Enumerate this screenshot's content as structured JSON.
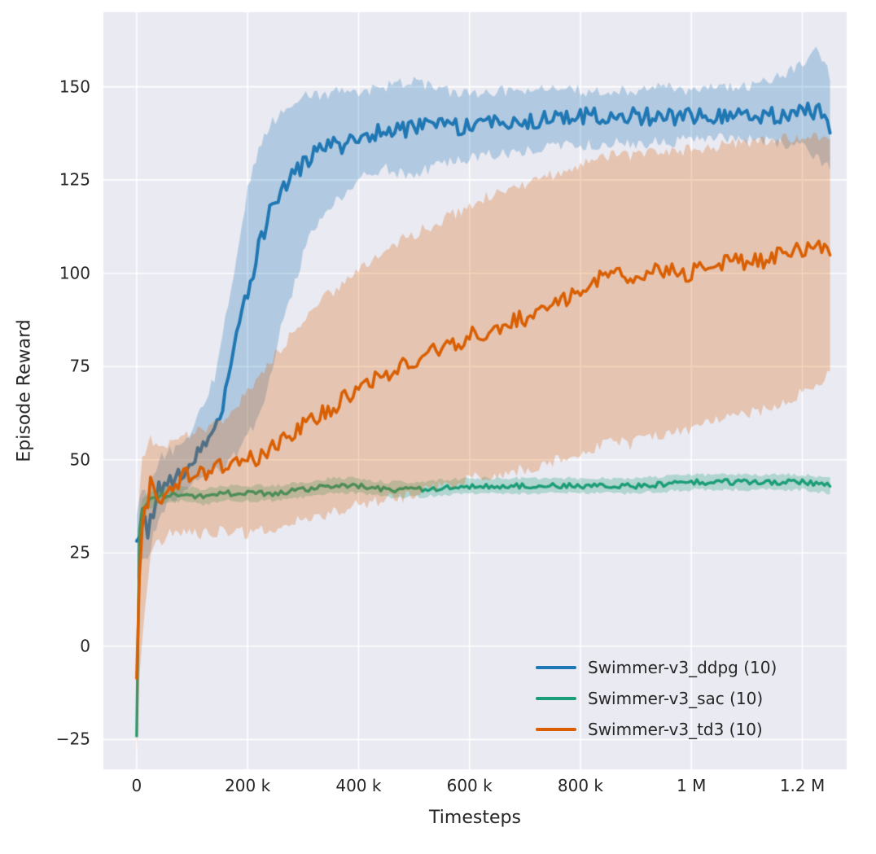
{
  "figure": {
    "background": "#ffffff",
    "plot_background": "#eaeaf2",
    "grid_color": "#ffffff",
    "text_color": "#262626"
  },
  "chart_data": {
    "type": "line",
    "title": "",
    "xlabel": "Timesteps",
    "ylabel": "Episode Reward",
    "grid": true,
    "legend_position": "lower right",
    "xlim": [
      -60000,
      1280000
    ],
    "ylim": [
      -33,
      170
    ],
    "xticks": {
      "values": [
        0,
        200000,
        400000,
        600000,
        800000,
        1000000,
        1200000
      ],
      "labels": [
        "0",
        "200 k",
        "400 k",
        "600 k",
        "800 k",
        "1 M",
        "1.2 M"
      ]
    },
    "yticks": {
      "values": [
        -25,
        0,
        25,
        50,
        75,
        100,
        125,
        150
      ],
      "labels": [
        "−25",
        "0",
        "25",
        "50",
        "75",
        "100",
        "125",
        "150"
      ]
    },
    "series": [
      {
        "name": "Swimmer-v3_ddpg (10)",
        "color": "#1f77b4",
        "x": [
          0,
          10000,
          20000,
          40000,
          60000,
          80000,
          100000,
          120000,
          140000,
          160000,
          180000,
          200000,
          220000,
          240000,
          260000,
          280000,
          300000,
          320000,
          340000,
          360000,
          380000,
          400000,
          450000,
          500000,
          550000,
          600000,
          650000,
          700000,
          750000,
          800000,
          850000,
          900000,
          950000,
          1000000,
          1050000,
          1100000,
          1150000,
          1200000,
          1230000,
          1250000
        ],
        "mean": [
          27,
          34,
          31,
          42,
          45,
          46,
          50,
          54,
          58,
          68,
          82,
          95,
          107,
          116,
          121,
          126,
          129,
          132,
          134,
          135,
          134,
          137,
          138,
          139,
          140,
          139,
          140,
          141,
          141,
          142,
          142,
          142,
          142,
          142,
          142,
          143,
          142,
          144,
          143,
          138
        ],
        "lo": [
          18,
          25,
          24,
          35,
          38,
          40,
          43,
          45,
          47,
          49,
          52,
          56,
          62,
          72,
          85,
          95,
          105,
          112,
          117,
          120,
          122,
          126,
          128,
          126,
          130,
          131,
          132,
          133,
          134,
          134,
          135,
          135,
          135,
          136,
          136,
          136,
          135,
          134,
          130,
          128
        ],
        "hi": [
          36,
          43,
          40,
          50,
          52,
          53,
          58,
          64,
          72,
          88,
          105,
          122,
          133,
          140,
          143,
          146,
          147,
          148,
          148,
          149,
          148,
          149,
          150,
          152,
          149,
          148,
          149,
          149,
          149,
          149,
          149,
          149,
          150,
          149,
          150,
          150,
          152,
          156,
          160,
          152
        ]
      },
      {
        "name": "Swimmer-v3_sac (10)",
        "color": "#1b9e77",
        "x": [
          0,
          3000,
          8000,
          20000,
          40000,
          80000,
          120000,
          160000,
          200000,
          250000,
          300000,
          350000,
          400000,
          450000,
          500000,
          600000,
          700000,
          800000,
          900000,
          1000000,
          1100000,
          1200000,
          1250000
        ],
        "mean": [
          -24,
          28,
          36,
          39,
          40,
          41,
          40,
          41,
          41,
          41,
          42,
          43,
          43,
          42,
          42,
          43,
          43,
          43,
          43,
          44,
          44,
          44,
          43
        ],
        "lo": [
          -26,
          24,
          33,
          37,
          38,
          39,
          38,
          39,
          39,
          39,
          40,
          41,
          41,
          40,
          40,
          41,
          41,
          41,
          41,
          42,
          42,
          42,
          41
        ],
        "hi": [
          -20,
          32,
          39,
          41,
          42,
          43,
          42,
          43,
          43,
          43,
          44,
          45,
          45,
          44,
          44,
          45,
          45,
          45,
          45,
          46,
          46,
          46,
          45
        ]
      },
      {
        "name": "Swimmer-v3_td3 (10)",
        "color": "#d95f02",
        "x": [
          0,
          3000,
          8000,
          15000,
          25000,
          40000,
          60000,
          80000,
          100000,
          120000,
          150000,
          180000,
          200000,
          220000,
          250000,
          280000,
          300000,
          330000,
          360000,
          400000,
          440000,
          480000,
          520000,
          560000,
          600000,
          640000,
          680000,
          720000,
          760000,
          800000,
          840000,
          870000,
          890000,
          920000,
          950000,
          1000000,
          1040000,
          1080000,
          1120000,
          1160000,
          1200000,
          1230000,
          1250000
        ],
        "mean": [
          -8,
          15,
          28,
          36,
          43,
          40,
          43,
          45,
          46,
          46,
          48,
          49,
          50,
          51,
          54,
          57,
          59,
          62,
          65,
          69,
          72,
          75,
          78,
          80,
          83,
          85,
          87,
          89,
          92,
          96,
          99,
          102,
          97,
          100,
          101,
          100,
          102,
          103,
          103,
          105,
          106,
          108,
          107
        ],
        "lo": [
          -28,
          -15,
          0,
          10,
          25,
          28,
          30,
          31,
          31,
          30,
          31,
          31,
          30,
          31,
          32,
          33,
          34,
          35,
          36,
          38,
          39,
          40,
          42,
          43,
          45,
          46,
          47,
          48,
          50,
          52,
          54,
          55,
          54,
          56,
          57,
          58,
          60,
          62,
          63,
          65,
          68,
          71,
          73
        ],
        "hi": [
          5,
          35,
          48,
          52,
          55,
          52,
          54,
          56,
          57,
          58,
          60,
          64,
          68,
          72,
          78,
          84,
          88,
          92,
          96,
          101,
          105,
          109,
          112,
          115,
          118,
          121,
          123,
          125,
          127,
          129,
          131,
          132,
          131,
          132,
          133,
          133,
          134,
          135,
          135,
          136,
          136,
          137,
          136
        ]
      }
    ]
  }
}
